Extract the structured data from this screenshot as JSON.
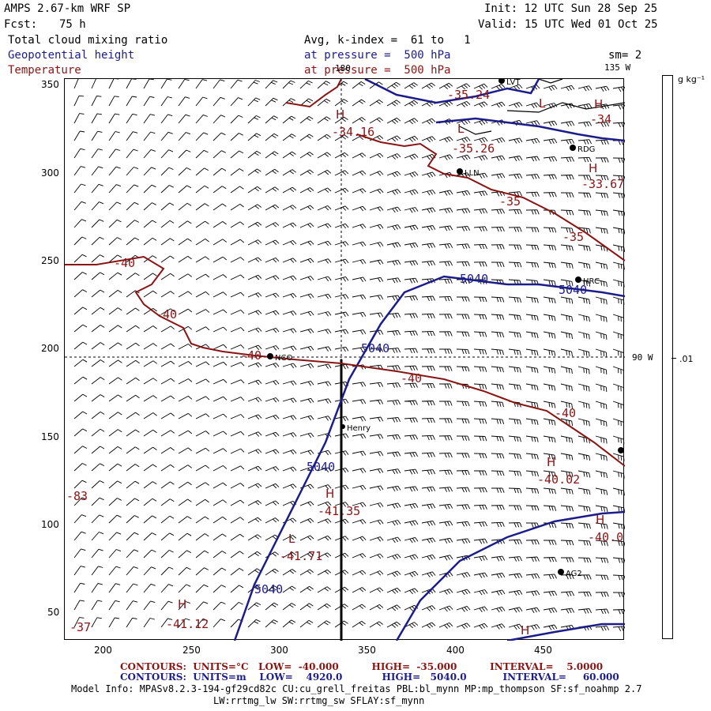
{
  "header": {
    "model": "AMPS 2.67-km WRF SP",
    "fcst_label": "Fcst:",
    "fcst_value": "75 h",
    "init": "Init: 12 UTC Sun 28 Sep 25",
    "valid": "Valid: 15 UTC Wed 01 Oct 25"
  },
  "fields": {
    "field1": "Total cloud mixing ratio",
    "field2": "Geopotential height",
    "field3": "Temperature",
    "avg": "Avg, k-index =  61 to   1",
    "pressure1": "at pressure =  500 hPa",
    "pressure2": "at pressure =  500 hPa",
    "sm": "sm= 2"
  },
  "map_labels": {
    "lon180": "180",
    "lon135": "135 W",
    "lon90": "90 W",
    "stations": [
      {
        "name": "NCO"
      },
      {
        "name": "Henry"
      },
      {
        "name": "HRC"
      },
      {
        "name": "RDG"
      },
      {
        "name": "LLN"
      },
      {
        "name": "AG2"
      },
      {
        "name": "LVT"
      }
    ],
    "contour_labels": [
      "-35.24",
      "-34",
      "-34.16",
      "-35.26",
      "-33.67",
      "-35",
      "-35",
      "-40",
      "-40",
      "-40",
      "-40",
      "-40",
      "-40.02",
      "-40.0",
      "-41.35",
      "-41.71",
      "-41.12",
      "-83",
      "-37",
      "5040",
      "5040",
      "5040",
      "5040",
      "5040"
    ],
    "hl_markers": [
      "H",
      "H",
      "H",
      "H",
      "H",
      "H",
      "H",
      "H",
      "L",
      "L",
      "L"
    ]
  },
  "axes": {
    "x_ticks": [
      "200",
      "250",
      "300",
      "350",
      "400",
      "450"
    ],
    "y_ticks": [
      "350",
      "300",
      "250",
      "200",
      "150",
      "100",
      "50"
    ]
  },
  "colorbar": {
    "unit": "g kg⁻¹",
    "tick": ".01"
  },
  "footer": {
    "contours_temp": "CONTOURS:  UNITS=°C   LOW=  -40.000          HIGH=  -35.000          INTERVAL=    5.0000",
    "contours_hgt": "CONTOURS:  UNITS=m    LOW=    4920.0            HIGH=   5040.0           INTERVAL=     60.000",
    "model_info": "Model Info: MPASv8.2.3-194-gf29cd82c CU:cu_grell_freitas PBL:bl_mynn MP:mp_thompson SF:sf_noahmp 2.7",
    "model_info2": "LW:rrtmg_lw SW:rrtmg_sw SFLAY:sf_mynn"
  },
  "colors": {
    "temperature": "#8a1414",
    "height": "#1c1c8a",
    "wind": "#000000"
  }
}
